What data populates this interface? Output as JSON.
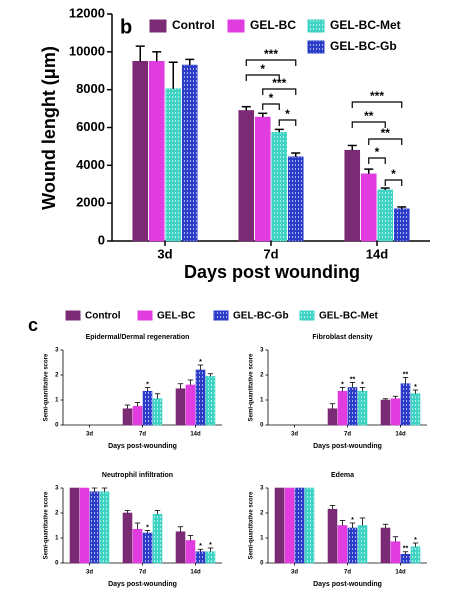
{
  "chart_data": [
    {
      "type": "bar",
      "panel_label": "b",
      "y_label": "Wound lenght (μm)",
      "x_label": "Days post wounding",
      "categories": [
        "3d",
        "7d",
        "14d"
      ],
      "ylim": [
        0,
        12000
      ],
      "yticks": [
        0,
        2000,
        4000,
        6000,
        8000,
        10000,
        12000
      ],
      "series": [
        {
          "name": "Control",
          "color": "#7b2b74",
          "hatched": false,
          "values": [
            9500,
            6900,
            4800
          ],
          "errors": [
            800,
            200,
            250
          ]
        },
        {
          "name": "GEL-BC",
          "color": "#e03ce0",
          "hatched": false,
          "values": [
            9500,
            6550,
            3550
          ],
          "errors": [
            500,
            200,
            250
          ]
        },
        {
          "name": "GEL-BC-Met",
          "color": "#3fd3c4",
          "hatched": true,
          "values": [
            8050,
            5750,
            2700
          ],
          "errors": [
            1400,
            150,
            100
          ]
        },
        {
          "name": "GEL-BC-Gb",
          "color": "#2a3cc8",
          "hatched": true,
          "values": [
            9300,
            4450,
            1700
          ],
          "errors": [
            300,
            200,
            100
          ]
        }
      ],
      "annotations": [
        "***",
        "*",
        "***",
        "*",
        "*",
        "***",
        "**",
        "**",
        "*",
        "*"
      ]
    },
    {
      "type": "bar",
      "panel_label": "c",
      "y_label": "Semi-quantitative score",
      "x_label": "Days post-wounding",
      "categories": [
        "3d",
        "7d",
        "14d"
      ],
      "ylim": [
        0,
        3
      ],
      "yticks": [
        0,
        1,
        2,
        3
      ],
      "series": [
        {
          "name": "Control",
          "color": "#7b2b74",
          "hatched": false
        },
        {
          "name": "GEL-BC",
          "color": "#e03ce0",
          "hatched": false
        },
        {
          "name": "GEL-BC-Gb",
          "color": "#2a3cc8",
          "hatched": true
        },
        {
          "name": "GEL-BC-Met",
          "color": "#3fd3c4",
          "hatched": true
        }
      ],
      "panels": [
        {
          "title": "Epidermal/Dermal regeneration",
          "values": [
            [
              0,
              0.65,
              1.45
            ],
            [
              0,
              0.75,
              1.6
            ],
            [
              0,
              1.35,
              2.2
            ],
            [
              0,
              1.05,
              1.95
            ]
          ],
          "errors": [
            [
              0,
              0.15,
              0.2
            ],
            [
              0,
              0.15,
              0.2
            ],
            [
              0,
              0.15,
              0.2
            ],
            [
              0,
              0.2,
              0.1
            ]
          ],
          "significance": [
            [
              null,
              null,
              null
            ],
            [
              null,
              null,
              null
            ],
            [
              null,
              "*",
              "*"
            ],
            [
              null,
              null,
              null
            ]
          ]
        },
        {
          "title": "Fibroblast density",
          "values": [
            [
              0,
              0.65,
              1.0
            ],
            [
              0,
              1.35,
              1.05
            ],
            [
              0,
              1.5,
              1.65
            ],
            [
              0,
              1.35,
              1.25
            ]
          ],
          "errors": [
            [
              0,
              0.2,
              0.05
            ],
            [
              0,
              0.15,
              0.1
            ],
            [
              0,
              0.2,
              0.25
            ],
            [
              0,
              0.15,
              0.15
            ]
          ],
          "significance": [
            [
              null,
              null,
              null
            ],
            [
              null,
              "*",
              null
            ],
            [
              null,
              "**",
              "**"
            ],
            [
              null,
              "*",
              "*"
            ]
          ]
        },
        {
          "title": "Neutrophil infiltration",
          "values": [
            [
              3,
              2.0,
              1.25
            ],
            [
              3,
              1.35,
              0.9
            ],
            [
              2.85,
              1.2,
              0.45
            ],
            [
              2.85,
              1.95,
              0.45
            ]
          ],
          "errors": [
            [
              0,
              0.1,
              0.2
            ],
            [
              0,
              0.25,
              0.2
            ],
            [
              0.15,
              0.1,
              0.1
            ],
            [
              0.15,
              0.15,
              0.15
            ]
          ],
          "significance": [
            [
              null,
              null,
              null
            ],
            [
              null,
              null,
              null
            ],
            [
              null,
              "*",
              "*"
            ],
            [
              null,
              null,
              "*"
            ]
          ]
        },
        {
          "title": "Edema",
          "values": [
            [
              3,
              2.15,
              1.4
            ],
            [
              3,
              1.5,
              0.85
            ],
            [
              3,
              1.4,
              0.35
            ],
            [
              3,
              1.5,
              0.65
            ]
          ],
          "errors": [
            [
              0,
              0.15,
              0.15
            ],
            [
              0,
              0.2,
              0.2
            ],
            [
              0,
              0.2,
              0.1
            ],
            [
              0,
              0.3,
              0.15
            ]
          ],
          "significance": [
            [
              null,
              null,
              null
            ],
            [
              null,
              null,
              null
            ],
            [
              null,
              "*",
              "**"
            ],
            [
              null,
              null,
              "*"
            ]
          ]
        }
      ]
    }
  ]
}
